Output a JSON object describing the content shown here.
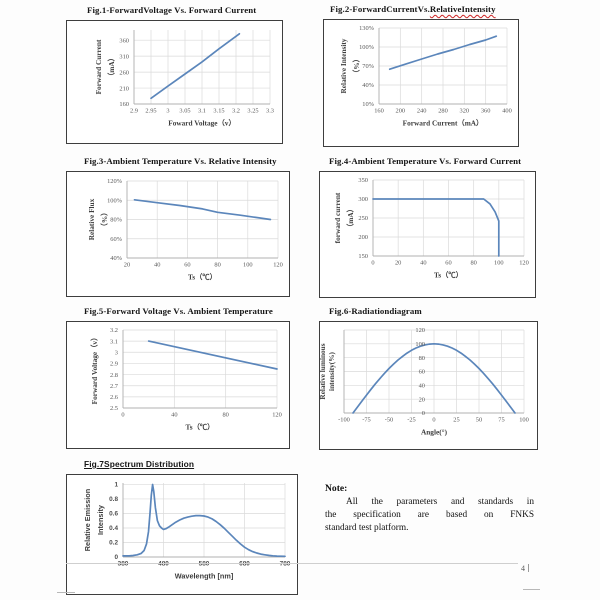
{
  "page": {
    "page_number": "4",
    "note": {
      "heading": "Note:",
      "body_lines": [
        "All the parameters and standards in",
        "the specification are based on FNKS",
        "standard test platform."
      ]
    },
    "colors": {
      "series_line": "#5b86bb",
      "gridline": "#dadada",
      "axis_line": "#b0b0b0",
      "box_border": "#3e3e3e",
      "tick_text": "#595959"
    }
  },
  "chart_data": [
    {
      "id": "fig1",
      "type": "line",
      "title": "Fig.1-ForwardVoltage Vs. Forward Current",
      "xlabel": "Foward Voltage（v）",
      "ylabel_lines": [
        "Forward Current",
        "（mA）"
      ],
      "xlim": [
        2.9,
        3.3
      ],
      "ylim": [
        160,
        392
      ],
      "x_ticks": [
        2.9,
        2.95,
        3,
        3.05,
        3.1,
        3.15,
        3.2,
        3.25,
        3.3
      ],
      "x_tick_labels": [
        "2.9",
        "2.95",
        "3",
        "3.05",
        "3.1",
        "3.15",
        "3.2",
        "3.25",
        "3.3"
      ],
      "y_ticks": [
        160,
        210,
        260,
        310,
        360
      ],
      "y_tick_labels": [
        "160",
        "210",
        "260",
        "310",
        "360"
      ],
      "grid": true,
      "line_color": "#5b86bb",
      "series": [
        {
          "name": "forward-current-vs-voltage",
          "x": [
            2.95,
            3.0,
            3.05,
            3.1,
            3.15,
            3.21
          ],
          "y": [
            178,
            216,
            254,
            292,
            333,
            380
          ]
        }
      ]
    },
    {
      "id": "fig2",
      "type": "line",
      "title": "Fig.2-ForwardCurrentVs.",
      "title_wavy": "RelativeIntensity",
      "xlabel": "Forward Current（mA）",
      "ylabel_lines": [
        "Relative Intensity",
        "（%）"
      ],
      "xlim": [
        160,
        400
      ],
      "ylim": [
        10,
        130
      ],
      "x_ticks": [
        160,
        200,
        240,
        280,
        320,
        360,
        400
      ],
      "x_tick_labels": [
        "160",
        "200",
        "240",
        "280",
        "320",
        "360",
        "400"
      ],
      "y_ticks": [
        10,
        40,
        70,
        100,
        130
      ],
      "y_tick_labels": [
        "10%",
        "40%",
        "70%",
        "100%",
        "130%"
      ],
      "grid": true,
      "line_color": "#5b86bb",
      "series": [
        {
          "name": "relative-intensity-vs-current",
          "x": [
            180,
            210,
            240,
            270,
            300,
            330,
            360,
            380
          ],
          "y": [
            65,
            73,
            81,
            89,
            96,
            104,
            111,
            117
          ]
        }
      ]
    },
    {
      "id": "fig3",
      "type": "line",
      "title": "Fig.3-Ambient Temperature Vs. Relative Intensity",
      "xlabel": "Ts（℃）",
      "ylabel_lines": [
        "Relative Flux",
        "（%）"
      ],
      "xlim": [
        20,
        120
      ],
      "ylim": [
        40,
        120
      ],
      "x_ticks": [
        20,
        40,
        60,
        80,
        100,
        120
      ],
      "x_tick_labels": [
        "20",
        "40",
        "60",
        "80",
        "100",
        "120"
      ],
      "y_ticks": [
        40,
        60,
        80,
        100,
        120
      ],
      "y_tick_labels": [
        "40%",
        "60%",
        "80%",
        "100%",
        "120%"
      ],
      "grid": true,
      "line_color": "#5b86bb",
      "series": [
        {
          "name": "relative-flux-vs-ts",
          "x": [
            25,
            40,
            55,
            70,
            80,
            95,
            115
          ],
          "y": [
            100.5,
            97.5,
            94.5,
            91,
            87.5,
            84.5,
            80
          ]
        }
      ]
    },
    {
      "id": "fig4",
      "type": "line",
      "title": "Fig.4-Ambient Temperature Vs. Forward Current",
      "xlabel": "Ts（℃）",
      "ylabel_lines": [
        "forward current",
        "（mA）"
      ],
      "xlim": [
        0,
        120
      ],
      "ylim": [
        150,
        350
      ],
      "x_ticks": [
        0,
        20,
        40,
        60,
        80,
        100,
        120
      ],
      "x_tick_labels": [
        "0",
        "20",
        "40",
        "60",
        "80",
        "100",
        "120"
      ],
      "y_ticks": [
        150,
        200,
        250,
        300,
        350
      ],
      "y_tick_labels": [
        "150",
        "200",
        "250",
        "300",
        "350"
      ],
      "grid": true,
      "line_color": "#5b86bb",
      "series": [
        {
          "name": "derating-current-vs-ts",
          "x": [
            0,
            88,
            93,
            97,
            100,
            100
          ],
          "y": [
            300,
            300,
            287,
            266,
            242,
            150
          ]
        }
      ]
    },
    {
      "id": "fig5",
      "type": "line",
      "title": "Fig.5-Forward Voltage Vs. Ambient Temperature",
      "xlabel": "Ts（℃）",
      "ylabel_lines": [
        "Forward Voltage（v）"
      ],
      "xlim": [
        0,
        120
      ],
      "ylim": [
        2.5,
        3.2
      ],
      "x_ticks": [
        0,
        40,
        80,
        120
      ],
      "x_tick_labels": [
        "0",
        "40",
        "80",
        "120"
      ],
      "y_ticks": [
        2.5,
        2.6,
        2.7,
        2.8,
        2.9,
        3,
        3.1,
        3.2
      ],
      "y_tick_labels": [
        "2.5",
        "2.6",
        "2.7",
        "2.8",
        "2.9",
        "3",
        "3.1",
        "3.2"
      ],
      "grid": true,
      "line_color": "#5b86bb",
      "series": [
        {
          "name": "forward-voltage-vs-ts",
          "x": [
            20,
            120
          ],
          "y": [
            3.1,
            2.85
          ]
        }
      ]
    },
    {
      "id": "fig6",
      "type": "line",
      "title": "Fig.6-Radiationdiagram",
      "xlabel": "Angle(°)",
      "ylabel_lines": [
        "Relative luminous",
        "intensity(%)"
      ],
      "xlim": [
        -100,
        100
      ],
      "ylim": [
        0,
        120
      ],
      "x_ticks": [
        -100,
        -75,
        -50,
        -25,
        0,
        25,
        50,
        75,
        100
      ],
      "x_tick_labels": [
        "-100",
        "-75",
        "-50",
        "-25",
        "0",
        "25",
        "50",
        "75",
        "100"
      ],
      "y_ticks": [
        0,
        20,
        40,
        60,
        80,
        100,
        120
      ],
      "y_tick_labels": [
        "0",
        "20",
        "40",
        "60",
        "80",
        "100",
        "120"
      ],
      "grid": true,
      "y_labels_at_zero": true,
      "line_color": "#5b86bb",
      "series": [
        {
          "name": "radiation-pattern",
          "x": [
            -90,
            -85,
            -80,
            -75,
            -70,
            -65,
            -60,
            -55,
            -50,
            -45,
            -40,
            -35,
            -30,
            -25,
            -20,
            -15,
            -10,
            -5,
            0,
            5,
            10,
            15,
            20,
            25,
            30,
            35,
            40,
            45,
            50,
            55,
            60,
            65,
            70,
            75,
            80,
            85,
            90
          ],
          "y": [
            0,
            8.7,
            17.4,
            25.9,
            34.2,
            42.3,
            50,
            57.4,
            64.3,
            70.7,
            76.6,
            81.9,
            86.6,
            90.6,
            94,
            96.6,
            98.5,
            99.6,
            100,
            99.6,
            98.5,
            96.6,
            94,
            90.6,
            86.6,
            81.9,
            76.6,
            70.7,
            64.3,
            57.4,
            50,
            42.3,
            34.2,
            25.9,
            17.4,
            8.7,
            0
          ]
        }
      ]
    },
    {
      "id": "fig7",
      "type": "line",
      "title": "Fig.7Spectrum Distribution",
      "xlabel": "Wavelength [nm]",
      "ylabel_lines": [
        "Relative Emission",
        "Intensity"
      ],
      "xlim": [
        380,
        780
      ],
      "ylim": [
        0,
        1.02
      ],
      "x_ticks": [
        380,
        480,
        580,
        680,
        780
      ],
      "x_tick_labels": [
        "380",
        "480",
        "580",
        "680",
        "780"
      ],
      "y_ticks": [
        0,
        0.2,
        0.4,
        0.6,
        0.8,
        1
      ],
      "y_tick_labels": [
        "0",
        "0.2",
        "0.4",
        "0.6",
        "0.8",
        "1"
      ],
      "grid": true,
      "line_color": "#5b86bb",
      "series": [
        {
          "name": "spectrum",
          "x": [
            380,
            395,
            405,
            415,
            425,
            432,
            438,
            443,
            447,
            450,
            453,
            456,
            460,
            465,
            470,
            475,
            480,
            486,
            492,
            500,
            510,
            520,
            530,
            540,
            550,
            560,
            570,
            580,
            590,
            600,
            610,
            620,
            630,
            640,
            650,
            660,
            670,
            680,
            690,
            700,
            710,
            720,
            730,
            740,
            750,
            760,
            770,
            780
          ],
          "y": [
            0.015,
            0.015,
            0.02,
            0.03,
            0.05,
            0.09,
            0.18,
            0.35,
            0.62,
            0.85,
            1.0,
            0.9,
            0.68,
            0.5,
            0.43,
            0.4,
            0.38,
            0.39,
            0.41,
            0.44,
            0.48,
            0.51,
            0.535,
            0.55,
            0.562,
            0.57,
            0.57,
            0.565,
            0.55,
            0.525,
            0.49,
            0.445,
            0.395,
            0.34,
            0.285,
            0.23,
            0.18,
            0.135,
            0.1,
            0.075,
            0.055,
            0.04,
            0.03,
            0.022,
            0.017,
            0.013,
            0.011,
            0.01
          ]
        }
      ]
    }
  ]
}
